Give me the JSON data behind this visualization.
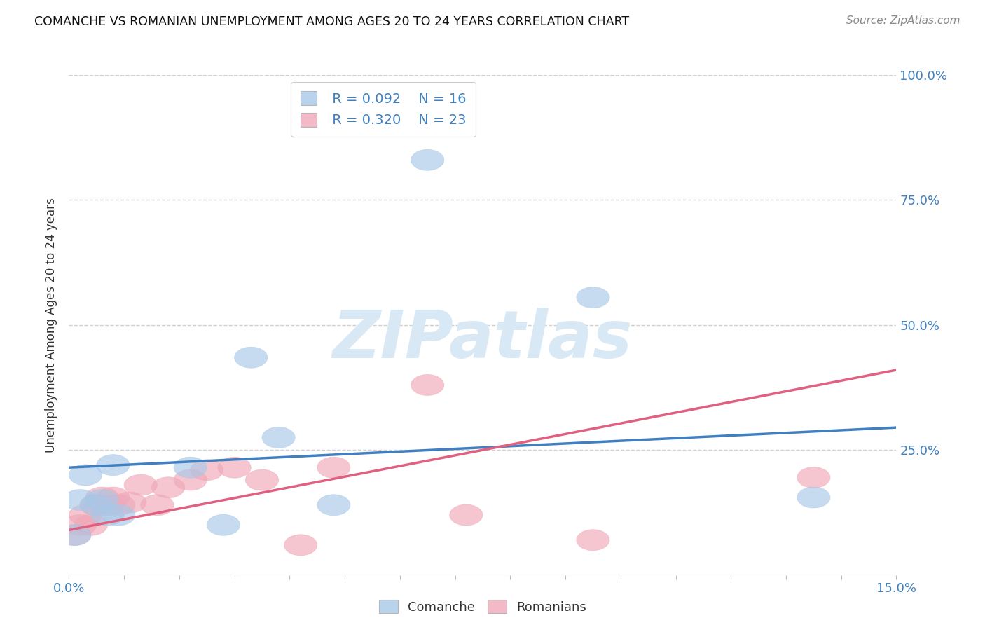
{
  "title": "COMANCHE VS ROMANIAN UNEMPLOYMENT AMONG AGES 20 TO 24 YEARS CORRELATION CHART",
  "source": "Source: ZipAtlas.com",
  "ylabel": "Unemployment Among Ages 20 to 24 years",
  "xlim": [
    0.0,
    0.15
  ],
  "ylim": [
    0.0,
    1.0
  ],
  "yticks": [
    0.0,
    0.25,
    0.5,
    0.75,
    1.0
  ],
  "right_ytick_labels": [
    "100.0%",
    "75.0%",
    "50.0%",
    "25.0%"
  ],
  "right_ytick_vals": [
    1.0,
    0.75,
    0.5,
    0.25
  ],
  "comanche_color": "#a8c8e8",
  "romanian_color": "#f0a8b8",
  "comanche_line_color": "#4080c0",
  "romanian_line_color": "#e06080",
  "legend_r_comanche": "R = 0.092",
  "legend_n_comanche": "N = 16",
  "legend_r_romanian": "R = 0.320",
  "legend_n_romanian": "N = 23",
  "comanche_x": [
    0.001,
    0.002,
    0.003,
    0.005,
    0.006,
    0.007,
    0.008,
    0.009,
    0.022,
    0.028,
    0.033,
    0.038,
    0.048,
    0.065,
    0.095,
    0.135
  ],
  "comanche_y": [
    0.08,
    0.15,
    0.2,
    0.14,
    0.15,
    0.12,
    0.22,
    0.12,
    0.215,
    0.1,
    0.435,
    0.275,
    0.14,
    0.83,
    0.555,
    0.155
  ],
  "romanian_x": [
    0.001,
    0.002,
    0.003,
    0.004,
    0.005,
    0.006,
    0.007,
    0.008,
    0.009,
    0.011,
    0.013,
    0.016,
    0.018,
    0.022,
    0.025,
    0.03,
    0.035,
    0.042,
    0.048,
    0.065,
    0.072,
    0.095,
    0.135
  ],
  "romanian_y": [
    0.08,
    0.1,
    0.12,
    0.1,
    0.14,
    0.155,
    0.14,
    0.155,
    0.14,
    0.145,
    0.18,
    0.14,
    0.175,
    0.19,
    0.21,
    0.215,
    0.19,
    0.06,
    0.215,
    0.38,
    0.12,
    0.07,
    0.195
  ],
  "comanche_trend_x": [
    0.0,
    0.15
  ],
  "comanche_trend_y": [
    0.215,
    0.295
  ],
  "romanian_trend_x": [
    0.0,
    0.15
  ],
  "romanian_trend_y": [
    0.09,
    0.41
  ],
  "watermark": "ZIPatlas",
  "watermark_color": "#d8e8f4",
  "background_color": "#ffffff",
  "grid_color": "#d0d0d0"
}
